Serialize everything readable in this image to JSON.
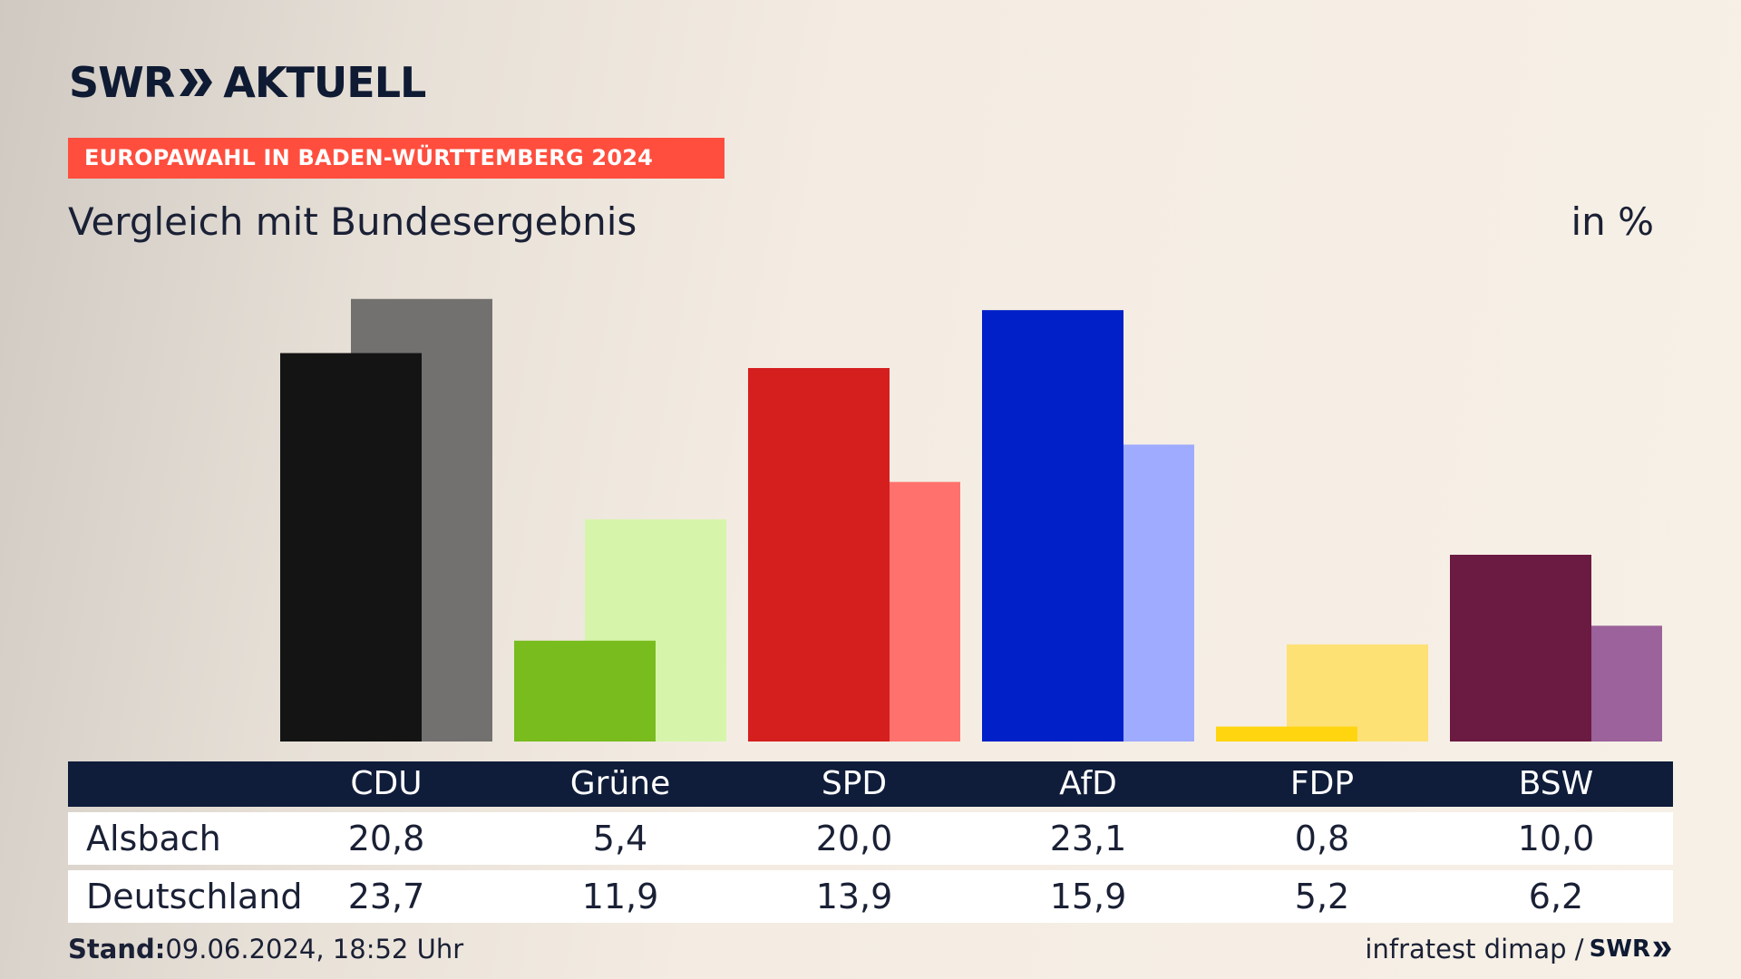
{
  "header": {
    "logo_left": "SWR",
    "logo_right": "AKTUELL",
    "kicker": "EUROPAWAHL IN BADEN-WÜRTTEMBERG 2024",
    "title": "Vergleich mit Bundesergebnis",
    "unit": "in %"
  },
  "chart_data": {
    "type": "bar",
    "categories": [
      "CDU",
      "Grüne",
      "SPD",
      "AfD",
      "FDP",
      "BSW"
    ],
    "series": [
      {
        "name": "Alsbach",
        "values": [
          20.8,
          5.4,
          20.0,
          23.1,
          0.8,
          10.0
        ],
        "display": [
          "20,8",
          "5,4",
          "20,0",
          "23,1",
          "0,8",
          "10,0"
        ],
        "colors": [
          "#141414",
          "#78bc1e",
          "#d51f1f",
          "#0120c8",
          "#ffd50f",
          "#6b1a41"
        ]
      },
      {
        "name": "Deutschland",
        "values": [
          23.7,
          11.9,
          13.9,
          15.9,
          5.2,
          6.2
        ],
        "display": [
          "23,7",
          "11,9",
          "13,9",
          "15,9",
          "5,2",
          "6,2"
        ],
        "colors": [
          "#737170",
          "#d6f5ab",
          "#ff716d",
          "#9eabff",
          "#fde175",
          "#9b629b"
        ]
      }
    ],
    "ylim": [
      0,
      24
    ]
  },
  "footer": {
    "stand_label": "Stand:",
    "stand_value": "09.06.2024, 18:52 Uhr",
    "source": "infratest dimap /",
    "source_logo": "SWR"
  }
}
